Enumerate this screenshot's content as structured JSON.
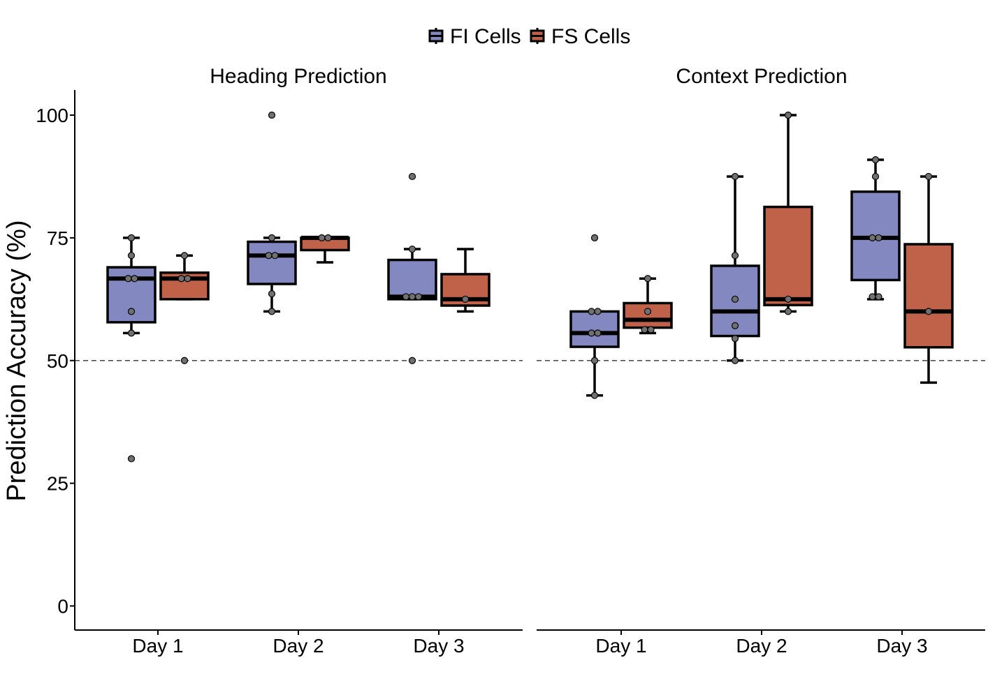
{
  "chart_data": {
    "type": "box",
    "ylabel": "Prediction Accuracy (%)",
    "yticks": [
      0,
      25,
      50,
      75,
      100
    ],
    "reference_line": 50,
    "categories": [
      "Day 1",
      "Day 2",
      "Day 3"
    ],
    "legend": {
      "position": "top",
      "items": [
        {
          "name": "FI Cells",
          "color": "#8389C0"
        },
        {
          "name": "FS Cells",
          "color": "#C0614A"
        }
      ]
    },
    "panels": [
      {
        "title": "Heading Prediction",
        "groups": [
          {
            "category": "Day 1",
            "series": "FI Cells",
            "whisker_low": 55.6,
            "q1": 57.8,
            "median": 66.7,
            "q3": 69.0,
            "whisker_high": 75.0,
            "points": [
              75.0,
              71.4,
              66.7,
              66.7,
              60.0,
              55.6,
              30.0
            ]
          },
          {
            "category": "Day 1",
            "series": "FS Cells",
            "whisker_low": 62.5,
            "q1": 62.5,
            "median": 66.7,
            "q3": 67.9,
            "whisker_high": 71.4,
            "points": [
              71.4,
              66.7,
              66.7,
              50.0
            ]
          },
          {
            "category": "Day 2",
            "series": "FI Cells",
            "whisker_low": 60.0,
            "q1": 65.6,
            "median": 71.4,
            "q3": 74.2,
            "whisker_high": 75.0,
            "points": [
              100.0,
              75.0,
              71.4,
              71.4,
              63.6,
              60.0
            ]
          },
          {
            "category": "Day 2",
            "series": "FS Cells",
            "whisker_low": 70.0,
            "q1": 72.5,
            "median": 75.0,
            "q3": 75.0,
            "whisker_high": 75.0,
            "points": [
              75.0,
              75.0
            ]
          },
          {
            "category": "Day 3",
            "series": "FI Cells",
            "whisker_low": 62.5,
            "q1": 62.5,
            "median": 63.0,
            "q3": 70.5,
            "whisker_high": 72.7,
            "points": [
              87.5,
              72.7,
              63.0,
              63.0,
              63.0,
              50.0
            ]
          },
          {
            "category": "Day 3",
            "series": "FS Cells",
            "whisker_low": 60.0,
            "q1": 61.2,
            "median": 62.5,
            "q3": 67.6,
            "whisker_high": 72.7,
            "points": [
              62.5
            ]
          }
        ]
      },
      {
        "title": "Context Prediction",
        "groups": [
          {
            "category": "Day 1",
            "series": "FI Cells",
            "whisker_low": 42.9,
            "q1": 52.8,
            "median": 55.6,
            "q3": 60.0,
            "whisker_high": 60.0,
            "points": [
              75.0,
              60.0,
              60.0,
              55.6,
              55.6,
              50.0,
              42.9
            ]
          },
          {
            "category": "Day 1",
            "series": "FS Cells",
            "whisker_low": 55.6,
            "q1": 56.7,
            "median": 58.3,
            "q3": 61.7,
            "whisker_high": 66.7,
            "points": [
              66.7,
              60.0,
              56.3,
              56.3
            ]
          },
          {
            "category": "Day 2",
            "series": "FI Cells",
            "whisker_low": 50.0,
            "q1": 55.0,
            "median": 60.0,
            "q3": 69.3,
            "whisker_high": 87.5,
            "points": [
              87.5,
              71.4,
              62.5,
              57.1,
              54.5,
              50.0
            ]
          },
          {
            "category": "Day 2",
            "series": "FS Cells",
            "whisker_low": 60.0,
            "q1": 61.3,
            "median": 62.5,
            "q3": 81.3,
            "whisker_high": 100.0,
            "points": [
              100.0,
              62.5,
              60.0
            ]
          },
          {
            "category": "Day 3",
            "series": "FI Cells",
            "whisker_low": 62.5,
            "q1": 66.4,
            "median": 75.0,
            "q3": 84.4,
            "whisker_high": 90.9,
            "points": [
              90.9,
              87.5,
              75.0,
              75.0,
              63.0,
              63.0
            ]
          },
          {
            "category": "Day 3",
            "series": "FS Cells",
            "whisker_low": 45.5,
            "q1": 52.7,
            "median": 60.0,
            "q3": 73.7,
            "whisker_high": 87.5,
            "points": [
              87.5,
              60.0
            ]
          }
        ]
      }
    ]
  }
}
